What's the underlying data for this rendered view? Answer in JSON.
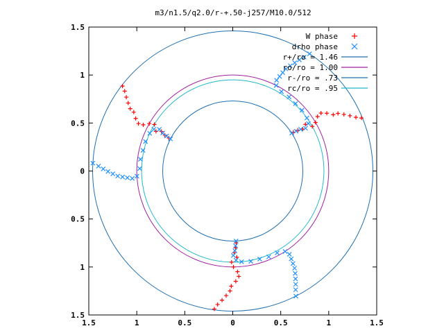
{
  "chart_data": {
    "type": "scatter",
    "title": "m3/n1.5/q2.0/r-+.50-j257/M10.0/512",
    "xlabel": "",
    "ylabel": "",
    "xlim": [
      -1.5,
      1.5
    ],
    "ylim": [
      -1.5,
      1.5
    ],
    "x_tick_labels": [
      "1.5",
      "1",
      "0.5",
      "0",
      "0.5",
      "1",
      "1.5"
    ],
    "x_tick_values": [
      -1.5,
      -1,
      -0.5,
      0,
      0.5,
      1,
      1.5
    ],
    "y_tick_labels": [
      "1.5",
      "1",
      "0.5",
      "0",
      "0.5",
      "1",
      "1.5"
    ],
    "y_tick_values": [
      1.5,
      1,
      0.5,
      0,
      -0.5,
      -1,
      -1.5
    ],
    "grid": false,
    "legend_position": "top-right",
    "circles": [
      {
        "name": "r+/ro = 1.46",
        "r": 1.46,
        "color": "#1f6fb0"
      },
      {
        "name": "ro/ro = 1.00",
        "r": 1.0,
        "color": "#a020a0"
      },
      {
        "name": "r-/ro = .73",
        "r": 0.73,
        "color": "#1f6fb0"
      },
      {
        "name": "rc/ro = .95",
        "r": 0.95,
        "color": "#20b8c8"
      }
    ],
    "series": [
      {
        "name": "W phase",
        "marker": "+",
        "color": "#ff0000",
        "arms": 3,
        "theta0_deg": 90,
        "arm_points": [
          [
            0.75,
            -1.0
          ],
          [
            0.8,
            -1.01
          ],
          [
            0.85,
            -1.03
          ],
          [
            0.9,
            -1.0
          ],
          [
            0.95,
            -1.06
          ],
          [
            1.0,
            -1.04
          ],
          [
            1.05,
            -1.0
          ],
          [
            1.1,
            -0.99
          ],
          [
            1.15,
            -1.02
          ],
          [
            1.2,
            -1.06
          ],
          [
            1.25,
            -1.07
          ],
          [
            1.3,
            -1.1
          ],
          [
            1.35,
            -1.13
          ],
          [
            1.4,
            -1.16
          ],
          [
            1.45,
            -1.18
          ]
        ]
      },
      {
        "name": "drho phase",
        "marker": "x",
        "color": "#1e8fff",
        "arms": 3,
        "theta0_deg": 90,
        "arm_points": [
          [
            0.73,
            -1.0
          ],
          [
            0.78,
            -1.01
          ],
          [
            0.83,
            -1.02
          ],
          [
            0.88,
            -1.04
          ],
          [
            0.93,
            -1.01
          ],
          [
            0.95,
            -0.95
          ],
          [
            0.96,
            -0.85
          ],
          [
            0.96,
            -0.75
          ],
          [
            0.97,
            -0.65
          ],
          [
            0.97,
            -0.55
          ],
          [
            1.0,
            -0.47
          ],
          [
            1.05,
            -0.45
          ],
          [
            1.1,
            -0.46
          ],
          [
            1.15,
            -0.47
          ],
          [
            1.2,
            -0.48
          ],
          [
            1.25,
            -0.5
          ],
          [
            1.3,
            -0.52
          ],
          [
            1.35,
            -0.54
          ],
          [
            1.4,
            -0.56
          ],
          [
            1.46,
            -0.58
          ]
        ]
      }
    ]
  },
  "legend": [
    {
      "label": "W phase",
      "type": "marker",
      "marker": "+",
      "color": "#ff0000"
    },
    {
      "label": "drho phase",
      "type": "marker",
      "marker": "x",
      "color": "#1e8fff"
    },
    {
      "label": "r+/ro = 1.46",
      "type": "line",
      "color": "#1f6fb0"
    },
    {
      "label": "ro/ro = 1.00",
      "type": "line",
      "color": "#a020a0"
    },
    {
      "label": "r-/ro = .73",
      "type": "line",
      "color": "#1f6fb0"
    },
    {
      "label": "rc/ro = .95",
      "type": "line",
      "color": "#20b8c8"
    }
  ]
}
